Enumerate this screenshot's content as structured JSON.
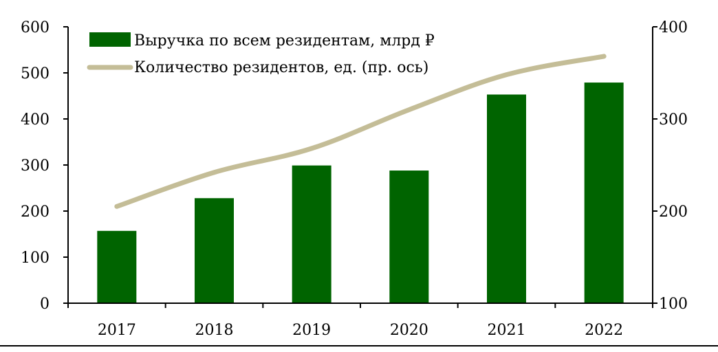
{
  "chart_data": {
    "type": "bar",
    "categories": [
      "2017",
      "2018",
      "2019",
      "2020",
      "2021",
      "2022"
    ],
    "series": [
      {
        "name": "Выручка по всем резидентам, млрд ₽",
        "type": "bar",
        "axis": "left",
        "color": "#006400",
        "values": [
          157,
          228,
          299,
          288,
          453,
          479
        ]
      },
      {
        "name": "Количество резидентов, ед. (пр. ось)",
        "type": "line",
        "axis": "right",
        "color": "#c4bd97",
        "values": [
          205,
          242,
          268,
          310,
          348,
          368
        ]
      }
    ],
    "y_left": {
      "range": [
        0,
        600
      ],
      "ticks": [
        "0",
        "100",
        "200",
        "300",
        "400",
        "500",
        "600"
      ]
    },
    "y_right": {
      "range": [
        100,
        400
      ],
      "ticks": [
        "100",
        "200",
        "300",
        "400"
      ]
    },
    "grid": false,
    "legend_position": "top-left"
  }
}
